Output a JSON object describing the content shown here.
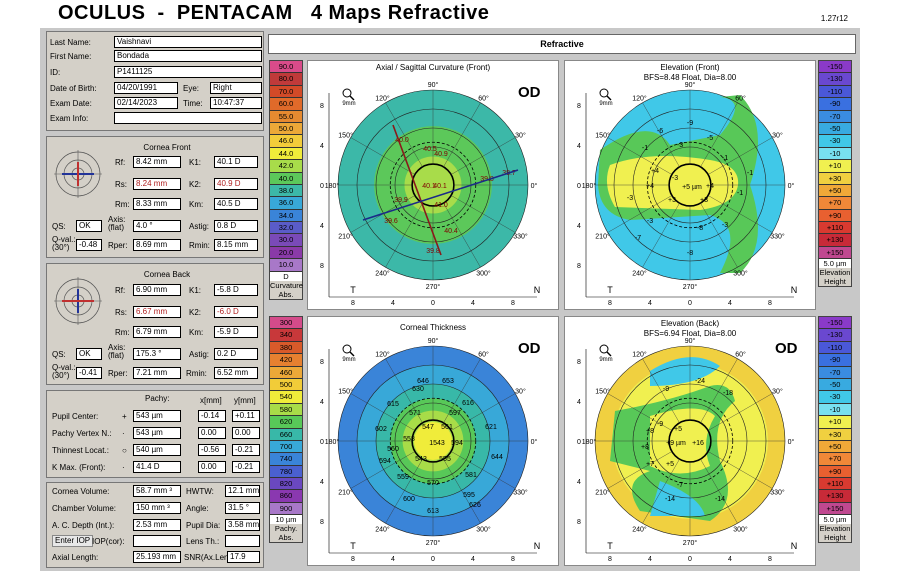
{
  "app": {
    "title": "OCULUS  -  PENTACAM   4 Maps Refractive",
    "version": "1.27r12"
  },
  "patient": {
    "last_name_label": "Last Name:",
    "last_name": "Vaishnavi",
    "first_name_label": "First Name:",
    "first_name": "Bondada",
    "id_label": "ID:",
    "id": "P1411125",
    "dob_label": "Date of Birth:",
    "dob": "04/20/1991",
    "eye_label": "Eye:",
    "eye": "Right",
    "exam_date_label": "Exam Date:",
    "exam_date": "02/14/2023",
    "time_label": "Time:",
    "time": "10:47:37",
    "exam_info_label": "Exam Info:",
    "exam_info": ""
  },
  "cornea_front": {
    "title": "Cornea Front",
    "rf_label": "Rf:",
    "rf": "8.42 mm",
    "k1_label": "K1:",
    "k1": "40.1 D",
    "rs_label": "Rs:",
    "rs": "8.24 mm",
    "k2_label": "K2:",
    "k2": "40.9 D",
    "rm_label": "Rm:",
    "rm": "8.33 mm",
    "km_label": "Km:",
    "km": "40.5 D",
    "qs_label": "QS:",
    "qs": "OK",
    "axis_label": "Axis: (flat)",
    "axis": "4.0 °",
    "astig_label": "Astig:",
    "astig": "0.8 D",
    "qval_label": "Q-val.: (30°)",
    "qval": "-0.48",
    "rper_label": "Rper:",
    "rper": "8.69 mm",
    "rmin_label": "Rmin:",
    "rmin": "8.15 mm"
  },
  "cornea_back": {
    "title": "Cornea Back",
    "rf_label": "Rf:",
    "rf": "6.90 mm",
    "k1_label": "K1:",
    "k1": "-5.8 D",
    "rs_label": "Rs:",
    "rs": "6.67 mm",
    "k2_label": "K2:",
    "k2": "-6.0 D",
    "rm_label": "Rm:",
    "rm": "6.79 mm",
    "km_label": "Km:",
    "km": "-5.9 D",
    "qs_label": "QS:",
    "qs": "OK",
    "axis_label": "Axis: (flat)",
    "axis": "175.3 °",
    "astig_label": "Astig:",
    "astig": "0.2 D",
    "qval_label": "Q-val.: (30°)",
    "qval": "-0.41",
    "rper_label": "Rper:",
    "rper": "7.21 mm",
    "rmin_label": "Rmin:",
    "rmin": "6.52 mm"
  },
  "pachy": {
    "pachy_label": "Pachy:",
    "x_label": "x[mm]",
    "y_label": "y[mm]",
    "rows": [
      {
        "label": "Pupil Center:",
        "sym": "+",
        "val": "543 µm",
        "x": "-0.14",
        "y": "+0.11"
      },
      {
        "label": "Pachy Vertex N.:",
        "sym": "·",
        "val": "543 µm",
        "x": "0.00",
        "y": "0.00"
      },
      {
        "label": "Thinnest Locat.:",
        "sym": "○",
        "val": "540 µm",
        "x": "-0.56",
        "y": "-0.21"
      },
      {
        "label": "K Max. (Front):",
        "sym": "·",
        "val": "41.4 D",
        "x": "0.00",
        "y": "-0.21"
      }
    ]
  },
  "volume": {
    "cv_label": "Cornea Volume:",
    "cv": "58.7 mm ³",
    "hwtw_label": "HWTW:",
    "hwtw": "12.1 mm",
    "chv_label": "Chamber Volume:",
    "chv": "150 mm ³",
    "angle_label": "Angle:",
    "angle": "31.5 °",
    "acd_label": "A. C. Depth (Int.):",
    "acd": "2.53 mm",
    "pupil_label": "Pupil Dia:",
    "pupil": "3.58 mm",
    "iop_btn": "Enter IOP",
    "iopcor_label": "IOP(cor):",
    "iopcor": "",
    "lens_label": "Lens Th.:",
    "lens": "",
    "axial_label": "Axial Length:",
    "axial": "25.193 mm",
    "snr_label": "SNR(Ax.Len):",
    "snr": "17.9"
  },
  "header": {
    "refractive": "Refractive"
  },
  "maps": [
    {
      "title": "Axial / Sagittal Curvature (Front)",
      "subtitle": "",
      "od": "OD",
      "zoom": "9mm"
    },
    {
      "title": "Elevation (Front)",
      "subtitle": "BFS=8.48 Float, Dia=8.00",
      "od": "",
      "zoom": "9mm"
    },
    {
      "title": "Corneal Thickness",
      "subtitle": "",
      "od": "OD",
      "zoom": "9mm"
    },
    {
      "title": "Elevation (Back)",
      "subtitle": "BFS=6.94 Float, Dia=8.00",
      "od": "OD",
      "zoom": "9mm"
    }
  ],
  "scales": {
    "curvature": {
      "values": [
        "90.0",
        "80.0",
        "70.0",
        "60.0",
        "55.0",
        "50.0",
        "46.0",
        "44.0",
        "42.0",
        "40.0",
        "38.0",
        "36.0",
        "34.0",
        "32.0",
        "30.0",
        "20.0",
        "10.0"
      ],
      "colors": [
        "#d94b8a",
        "#c03a3a",
        "#d24a28",
        "#e06a2a",
        "#e68a30",
        "#eca838",
        "#f2cc3a",
        "#f0ec3a",
        "#a8dc4a",
        "#5cc85a",
        "#3cb8a8",
        "#38a8d8",
        "#3a84d8",
        "#5a5cc8",
        "#7a4ab8",
        "#8a3aa8",
        "#a878c8"
      ],
      "unit": "D",
      "cap1": "Curvature",
      "cap2": "Abs."
    },
    "elev_front": {
      "values": [
        "-150",
        "-130",
        "-110",
        "-90",
        "-70",
        "-50",
        "-30",
        "-10",
        "+10",
        "+30",
        "+50",
        "+70",
        "+90",
        "+110",
        "+130",
        "+150"
      ],
      "colors": [
        "#8a3ac8",
        "#6a48d0",
        "#4a58d8",
        "#3a70e0",
        "#3a8ce0",
        "#38aae0",
        "#40c8e8",
        "#78e0f0",
        "#f0f050",
        "#f0d040",
        "#f0a838",
        "#f08838",
        "#e86030",
        "#d83a30",
        "#c82a38",
        "#c04890"
      ],
      "unit": "5.0 µm",
      "cap1": "Elevation",
      "cap2": "Height"
    },
    "thickness": {
      "values": [
        "300",
        "340",
        "380",
        "420",
        "460",
        "500",
        "540",
        "580",
        "620",
        "660",
        "700",
        "740",
        "780",
        "820",
        "860",
        "900"
      ],
      "colors": [
        "#d44b8a",
        "#c8383a",
        "#d85a2a",
        "#e68030",
        "#eca838",
        "#f2cc38",
        "#f0ec3a",
        "#a8dc48",
        "#58c858",
        "#38b8a8",
        "#38a8d8",
        "#3a84d8",
        "#4a60d0",
        "#6a48c0",
        "#8a38b0",
        "#a878c8"
      ],
      "unit": "10 µm",
      "cap1": "Pachy.",
      "cap2": "Abs."
    },
    "elev_back": {
      "values": [
        "-150",
        "-130",
        "-110",
        "-90",
        "-70",
        "-50",
        "-30",
        "-10",
        "+10",
        "+30",
        "+50",
        "+70",
        "+90",
        "+110",
        "+130",
        "+150"
      ],
      "colors": [
        "#8a3ac8",
        "#6a48d0",
        "#4a58d8",
        "#3a70e0",
        "#3a8ce0",
        "#38aae0",
        "#40c8e8",
        "#78e0f0",
        "#f0f050",
        "#f0d040",
        "#f0a838",
        "#f08838",
        "#e86030",
        "#d83a30",
        "#c82a38",
        "#c04890"
      ],
      "unit": "5.0 µm",
      "cap1": "Elevation",
      "cap2": "Height"
    }
  },
  "axes": {
    "y_ticks": [
      "8",
      "4",
      "0",
      "4",
      "8"
    ],
    "x_ticks": [
      "8",
      "4",
      "0",
      "4",
      "8"
    ],
    "t": "T",
    "n": "N",
    "angles": [
      "90°",
      "120°",
      "60°",
      "150°",
      "30°",
      "180°",
      "0°",
      "210°",
      "330°",
      "240°",
      "300°",
      "270°"
    ]
  },
  "curv_values": [
    "40.0",
    "40.5",
    "40.9",
    "40.1",
    "40.1",
    "39.8",
    "38.7",
    "39.9",
    "41.0",
    "39.6",
    "40.4",
    "39.8"
  ],
  "ef_values": [
    "-9",
    "-6",
    "-5",
    "-3",
    "-1",
    "-1",
    "-3",
    "+4",
    "+4",
    "+5 µm",
    "+4",
    "+3",
    "+3",
    "-3",
    "-7",
    "-8",
    "-3",
    "-1",
    "-1",
    "-3",
    "-8"
  ],
  "th_values": [
    "653",
    "646",
    "630",
    "615",
    "571",
    "558",
    "597",
    "616",
    "547",
    "561",
    "602",
    "560",
    "1543",
    "594",
    "621",
    "594",
    "543",
    "555",
    "644",
    "559",
    "581",
    "570",
    "595",
    "600",
    "626",
    "613"
  ],
  "eb_values": [
    "-24",
    "-9",
    "-18",
    "-9",
    "+8",
    "+5",
    "+8",
    "+9 µm",
    "+16",
    "+7",
    "+5",
    "-7",
    "-14",
    "-14"
  ]
}
